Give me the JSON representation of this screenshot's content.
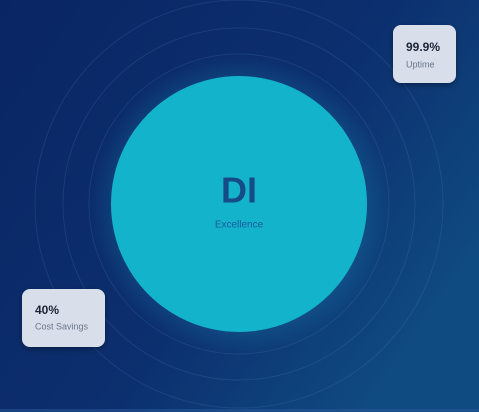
{
  "hero": {
    "title": "DI",
    "subtitle": "Excellence"
  },
  "cards": [
    {
      "value": "99.9%",
      "label": "Uptime"
    },
    {
      "value": "40%",
      "label": "Cost Savings"
    }
  ]
}
